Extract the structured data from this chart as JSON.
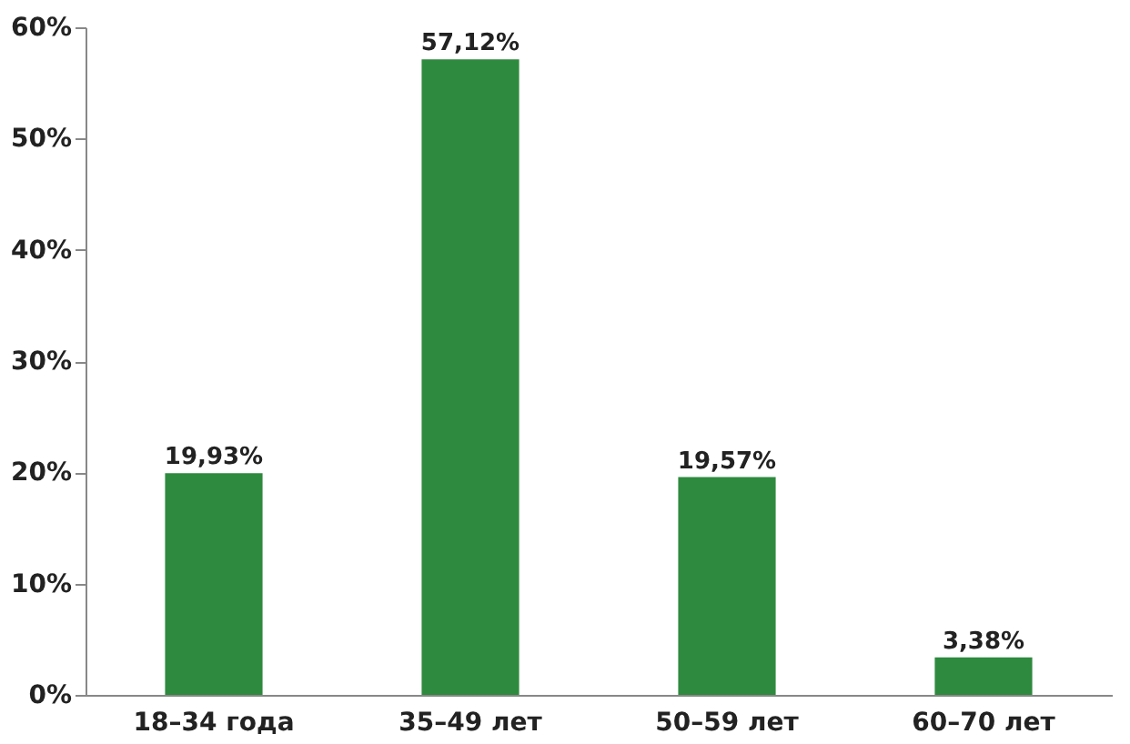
{
  "chart_data": {
    "type": "bar",
    "categories": [
      "18–34 года",
      "35–49 лет",
      "50–59 лет",
      "60–70 лет"
    ],
    "values": [
      19.93,
      57.12,
      19.57,
      3.38
    ],
    "value_labels": [
      "19,93%",
      "57,12%",
      "19,57%",
      "3,38%"
    ],
    "color": "#2e8a3e",
    "ylim": [
      0,
      60
    ],
    "yticks": [
      {
        "value": 0,
        "label": "0%"
      },
      {
        "value": 10,
        "label": "10%"
      },
      {
        "value": 20,
        "label": "20%"
      },
      {
        "value": 30,
        "label": "30%"
      },
      {
        "value": 40,
        "label": "40%"
      },
      {
        "value": 50,
        "label": "50%"
      },
      {
        "value": 60,
        "label": "60%"
      }
    ],
    "grid": false
  }
}
